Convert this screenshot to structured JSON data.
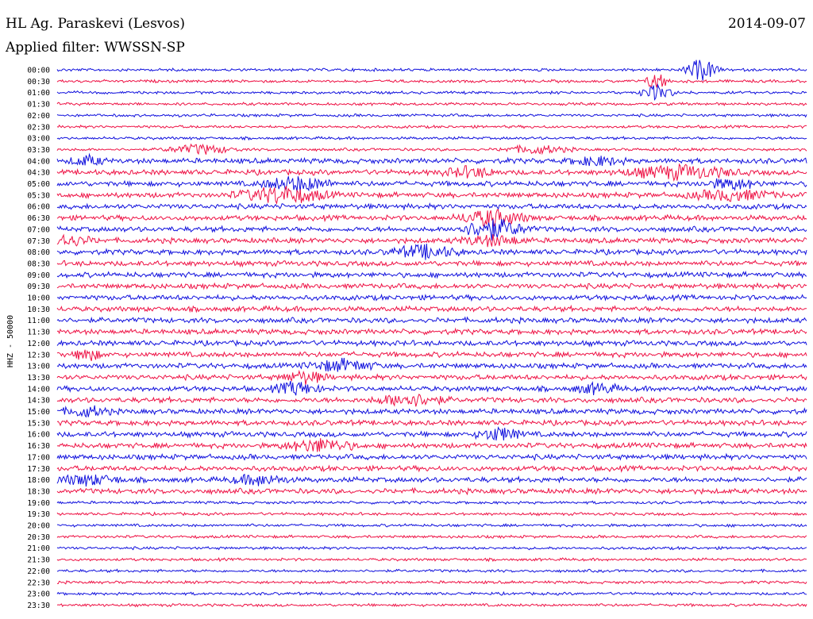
{
  "header": {
    "station": "HL Ag. Paraskevi (Lesvos)",
    "date": "2014-09-07",
    "filter": "Applied filter: WWSSN-SP"
  },
  "chart_data": {
    "type": "line",
    "subtype": "helicorder",
    "title": "HL Ag. Paraskevi (Lesvos)",
    "date": "2014-09-07",
    "filter": "WWSSN-SP",
    "ylabel": "HHZ - 50000",
    "xlabel": "",
    "row_labels": [
      "00:00",
      "00:30",
      "01:00",
      "01:30",
      "02:00",
      "02:30",
      "03:00",
      "03:30",
      "04:00",
      "04:30",
      "05:00",
      "05:30",
      "06:00",
      "06:30",
      "07:00",
      "07:30",
      "08:00",
      "08:30",
      "09:00",
      "09:30",
      "10:00",
      "10:30",
      "11:00",
      "11:30",
      "12:00",
      "12:30",
      "13:00",
      "13:30",
      "14:00",
      "14:30",
      "15:00",
      "15:30",
      "16:00",
      "16:30",
      "17:00",
      "17:30",
      "18:00",
      "18:30",
      "19:00",
      "19:30",
      "20:00",
      "20:30",
      "21:00",
      "21:30",
      "22:00",
      "22:30",
      "23:00",
      "23:30"
    ],
    "series_colors": [
      "#1010dd",
      "#ee1144"
    ],
    "grid": false,
    "legend": "none"
  }
}
